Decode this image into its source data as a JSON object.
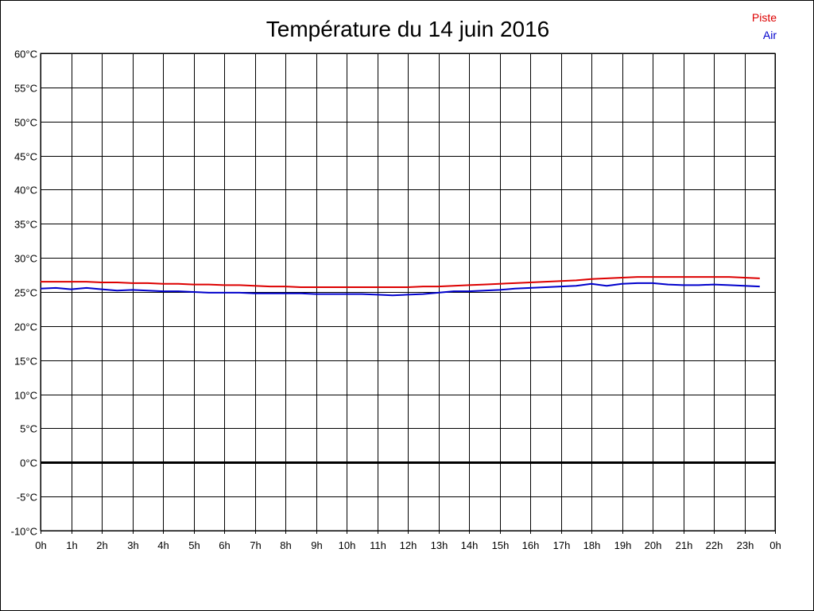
{
  "chart_data": {
    "type": "line",
    "title": "Température du 14 juin 2016",
    "xlabel": "",
    "ylabel": "",
    "x_ticks": [
      "0h",
      "1h",
      "2h",
      "3h",
      "4h",
      "5h",
      "6h",
      "7h",
      "8h",
      "9h",
      "10h",
      "11h",
      "12h",
      "13h",
      "14h",
      "15h",
      "16h",
      "17h",
      "18h",
      "19h",
      "20h",
      "21h",
      "22h",
      "23h",
      "0h"
    ],
    "y_ticks": [
      "60°C",
      "55°C",
      "50°C",
      "45°C",
      "40°C",
      "35°C",
      "30°C",
      "25°C",
      "20°C",
      "15°C",
      "10°C",
      "5°C",
      "0°C",
      "-5°C",
      "-10°C"
    ],
    "xlim": [
      0,
      24
    ],
    "ylim": [
      -10,
      60
    ],
    "grid": true,
    "legend_position": "top-right",
    "colors": {
      "grid": "#000000",
      "zero_line": "#000000"
    },
    "series": [
      {
        "name": "Piste",
        "color": "#dd0000",
        "x": [
          0,
          0.5,
          1,
          1.5,
          2,
          2.5,
          3,
          3.5,
          4,
          4.5,
          5,
          5.5,
          6,
          6.5,
          7,
          7.5,
          8,
          8.5,
          9,
          9.5,
          10,
          10.5,
          11,
          11.5,
          12,
          12.5,
          13,
          13.5,
          14,
          14.5,
          15,
          15.5,
          16,
          16.5,
          17,
          17.5,
          18,
          18.5,
          19,
          19.5,
          20,
          20.5,
          21,
          21.5,
          22,
          22.5,
          23,
          23.5
        ],
        "values": [
          26.5,
          26.5,
          26.5,
          26.5,
          26.4,
          26.4,
          26.3,
          26.3,
          26.2,
          26.2,
          26.1,
          26.1,
          26.0,
          26.0,
          25.9,
          25.8,
          25.8,
          25.7,
          25.7,
          25.7,
          25.7,
          25.7,
          25.7,
          25.7,
          25.7,
          25.8,
          25.8,
          25.9,
          26.0,
          26.1,
          26.2,
          26.3,
          26.4,
          26.5,
          26.6,
          26.7,
          26.9,
          27.0,
          27.1,
          27.2,
          27.2,
          27.2,
          27.2,
          27.2,
          27.2,
          27.2,
          27.1,
          27.0
        ]
      },
      {
        "name": "Air",
        "color": "#0000cc",
        "x": [
          0,
          0.5,
          1,
          1.5,
          2,
          2.5,
          3,
          3.5,
          4,
          4.5,
          5,
          5.5,
          6,
          6.5,
          7,
          7.5,
          8,
          8.5,
          9,
          9.5,
          10,
          10.5,
          11,
          11.5,
          12,
          12.5,
          13,
          13.5,
          14,
          14.5,
          15,
          15.5,
          16,
          16.5,
          17,
          17.5,
          18,
          18.5,
          19,
          19.5,
          20,
          20.5,
          21,
          21.5,
          22,
          22.5,
          23,
          23.5
        ],
        "values": [
          25.5,
          25.6,
          25.4,
          25.6,
          25.4,
          25.2,
          25.3,
          25.2,
          25.1,
          25.1,
          25.0,
          24.9,
          24.9,
          24.9,
          24.8,
          24.8,
          24.8,
          24.8,
          24.7,
          24.7,
          24.7,
          24.7,
          24.6,
          24.5,
          24.6,
          24.7,
          24.9,
          25.1,
          25.1,
          25.2,
          25.3,
          25.5,
          25.6,
          25.7,
          25.8,
          25.9,
          26.2,
          25.9,
          26.2,
          26.3,
          26.3,
          26.1,
          26.0,
          26.0,
          26.1,
          26.0,
          25.9,
          25.8
        ]
      }
    ]
  }
}
